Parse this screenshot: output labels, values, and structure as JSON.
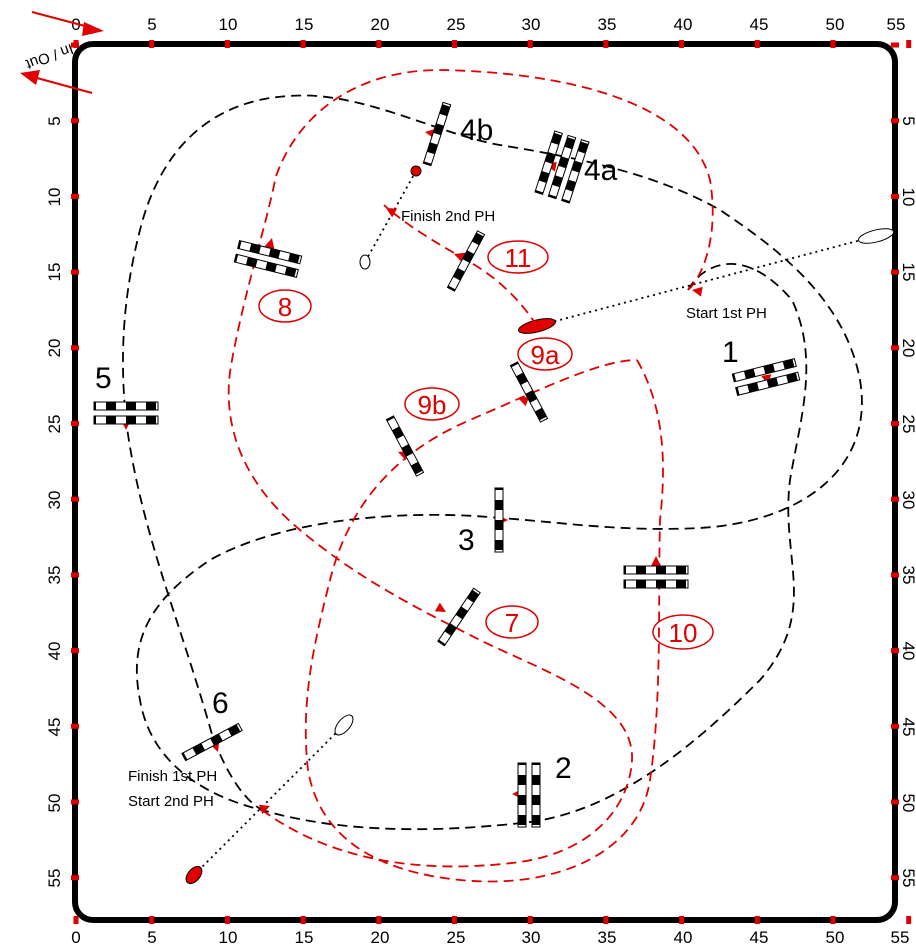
{
  "axis": {
    "ticks": [
      0,
      5,
      10,
      15,
      20,
      25,
      30,
      35,
      40,
      45,
      50,
      55
    ],
    "top_labels": [
      "0",
      "5",
      "10",
      "15",
      "20",
      "25",
      "30",
      "35",
      "40",
      "45",
      "50",
      "55"
    ],
    "bottom_labels": [
      "0",
      "5",
      "10",
      "15",
      "20",
      "25",
      "30",
      "35",
      "40",
      "45",
      "50",
      "55"
    ],
    "left_labels": [
      "5",
      "10",
      "15",
      "20",
      "25",
      "30",
      "35",
      "40",
      "45",
      "50",
      "55"
    ],
    "right_labels": [
      "5",
      "10",
      "15",
      "20",
      "25",
      "30",
      "35",
      "40",
      "45",
      "50",
      "55"
    ],
    "corner_top_right": "55",
    "in_out": "In / Out",
    "tick_color": "#e00000"
  },
  "colors": {
    "first_ph": "#000000",
    "second_ph": "#e00000",
    "marker": "#e00000"
  },
  "obstacle_labels": {
    "o1": "1",
    "o2": "2",
    "o3": "3",
    "o4a": "4a",
    "o4b": "4b",
    "o5": "5",
    "o6": "6",
    "o7": "7",
    "o8": "8",
    "o9a": "9a",
    "o9b": "9b",
    "o10": "10",
    "o11": "11"
  },
  "texts": {
    "start_1st": "Start 1st PH",
    "finish_1st": "Finish 1st PH",
    "start_2nd": "Start 2nd PH",
    "finish_2nd": "Finish 2nd PH"
  }
}
